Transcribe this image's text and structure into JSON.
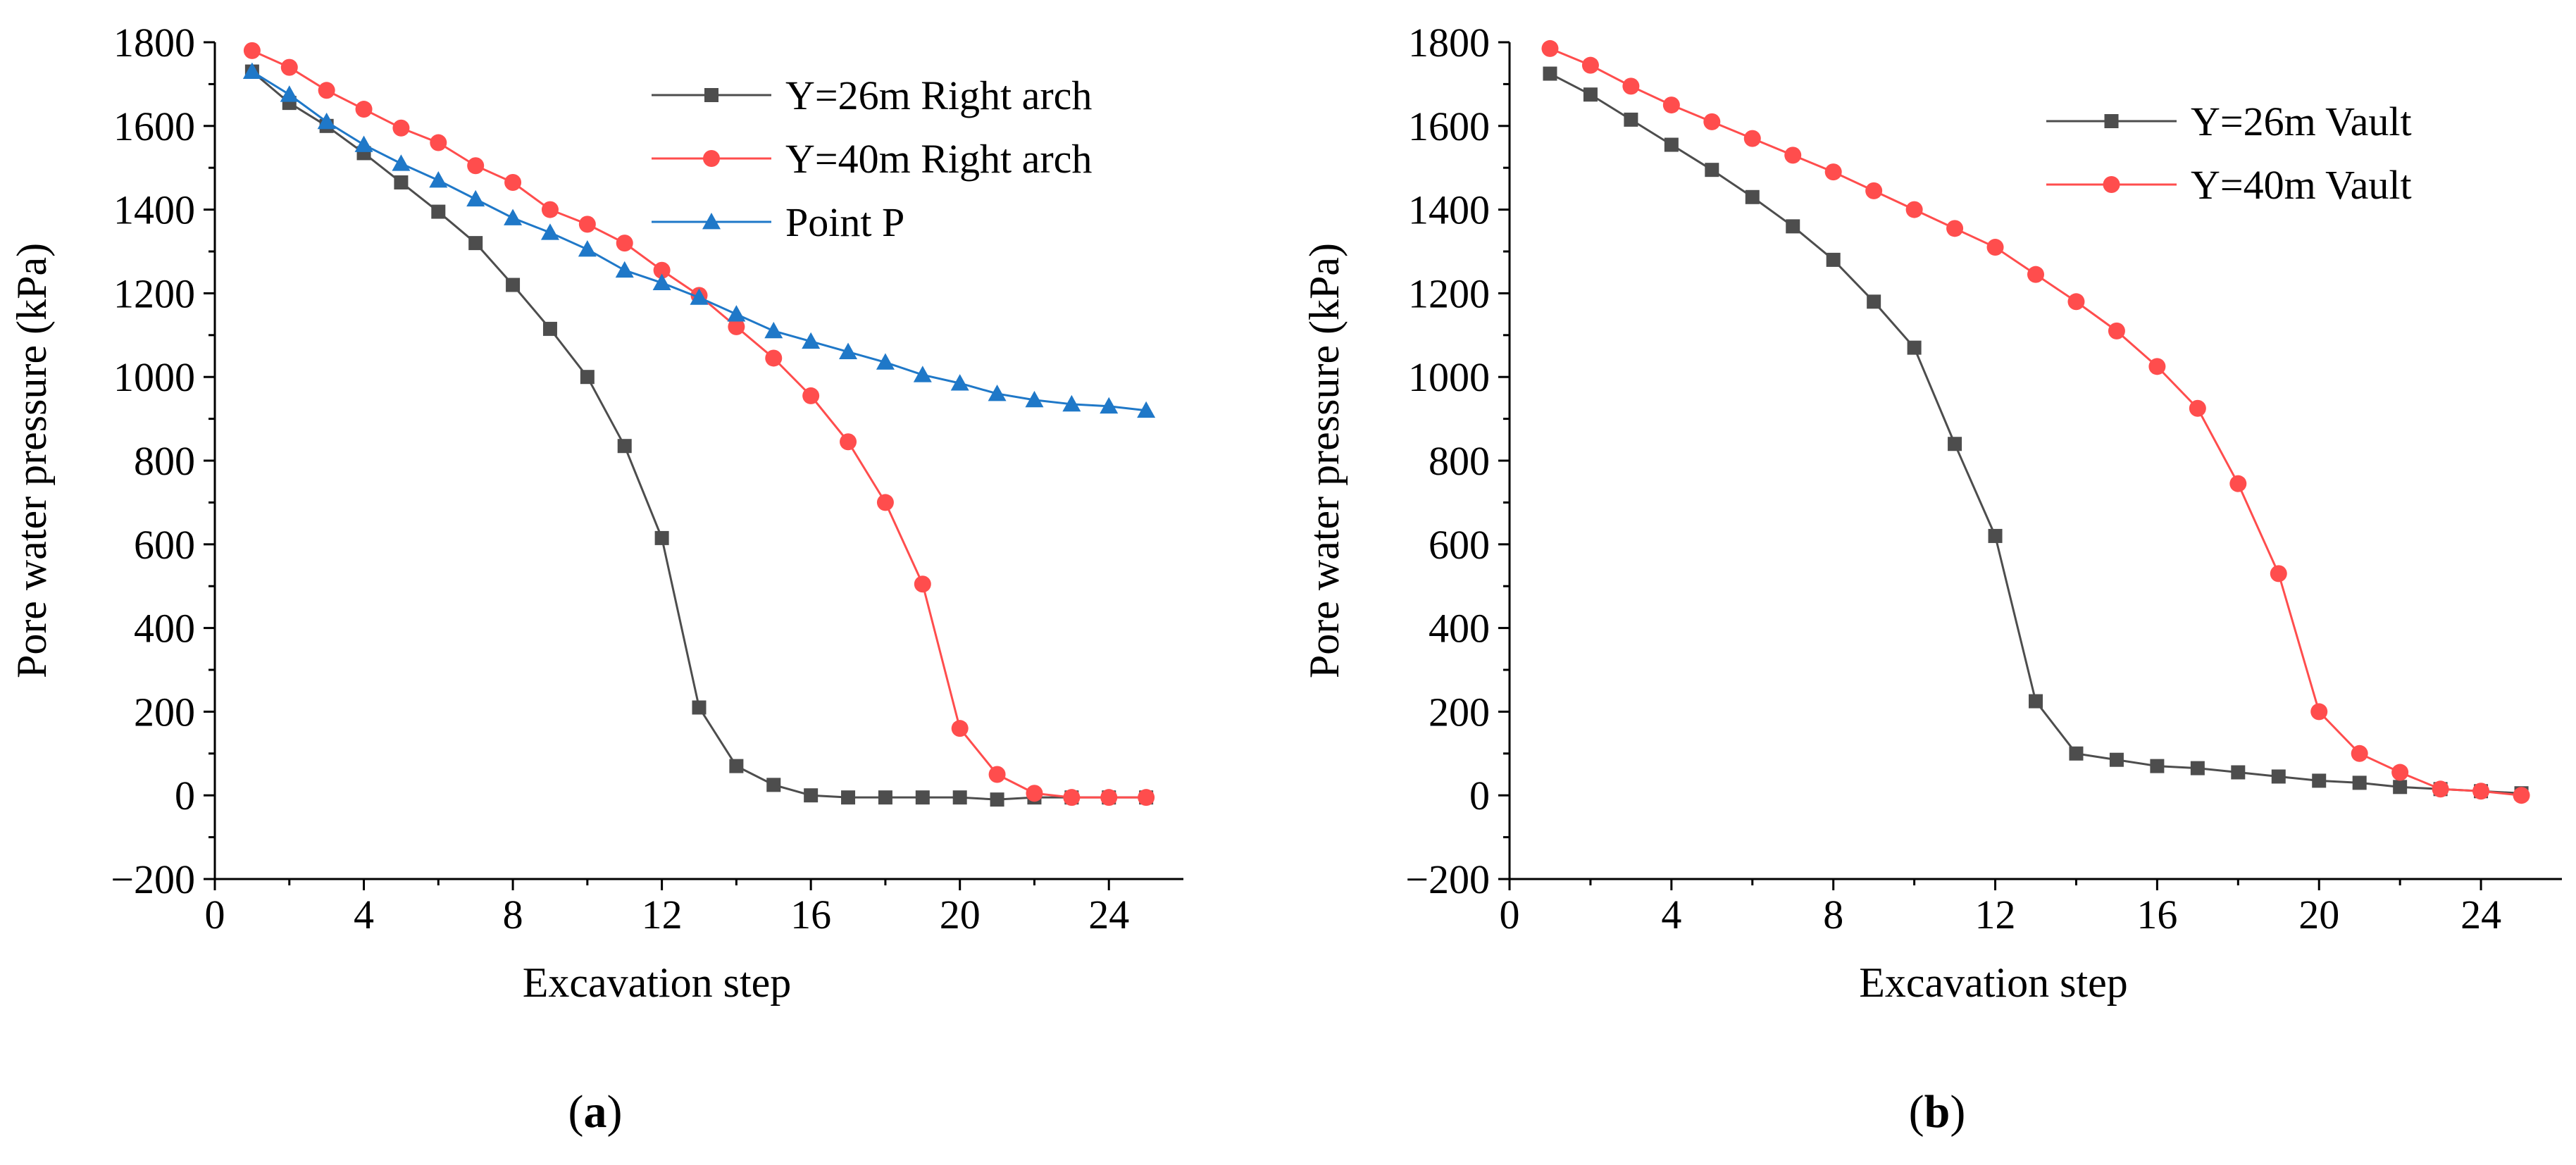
{
  "chart_data": [
    {
      "type": "line",
      "panel_label": "a",
      "xlabel": "Excavation step",
      "ylabel": "Pore water pressure (kPa)",
      "xlim": [
        0,
        26
      ],
      "ylim": [
        -200,
        1800
      ],
      "xticks": [
        0,
        4,
        8,
        12,
        16,
        20,
        24
      ],
      "yticks": [
        -200,
        0,
        200,
        400,
        600,
        800,
        1000,
        1200,
        1400,
        1600,
        1800
      ],
      "legend_position": "top-right",
      "x": [
        1,
        2,
        3,
        4,
        5,
        6,
        7,
        8,
        9,
        10,
        11,
        12,
        13,
        14,
        15,
        16,
        17,
        18,
        19,
        20,
        21,
        22,
        23,
        24,
        25
      ],
      "series": [
        {
          "name": "Y=26m Right arch",
          "color": "#4d4d4d",
          "marker": "square",
          "values": [
            1730,
            1655,
            1600,
            1535,
            1465,
            1395,
            1320,
            1220,
            1115,
            1000,
            835,
            615,
            210,
            70,
            25,
            0,
            -5,
            -5,
            -5,
            -5,
            -10,
            -5,
            -5,
            -5,
            -5
          ]
        },
        {
          "name": "Y=40m Right arch",
          "color": "#ff4d4d",
          "marker": "circle",
          "values": [
            1780,
            1740,
            1685,
            1640,
            1595,
            1560,
            1505,
            1465,
            1400,
            1365,
            1320,
            1255,
            1195,
            1120,
            1045,
            955,
            845,
            700,
            505,
            160,
            50,
            5,
            -5,
            -5,
            -5
          ]
        },
        {
          "name": "Point P",
          "color": "#1f78c8",
          "marker": "triangle",
          "values": [
            1730,
            1675,
            1610,
            1555,
            1510,
            1470,
            1425,
            1380,
            1345,
            1305,
            1255,
            1225,
            1190,
            1150,
            1110,
            1085,
            1060,
            1035,
            1005,
            985,
            960,
            945,
            935,
            930,
            920
          ]
        }
      ]
    },
    {
      "type": "line",
      "panel_label": "b",
      "xlabel": "Excavation step",
      "ylabel": "Pore water pressure (kPa)",
      "xlim": [
        0,
        26
      ],
      "ylim": [
        -200,
        1800
      ],
      "xticks": [
        0,
        4,
        8,
        12,
        16,
        20,
        24
      ],
      "yticks": [
        -200,
        0,
        200,
        400,
        600,
        800,
        1000,
        1200,
        1400,
        1600,
        1800
      ],
      "legend_position": "top-right",
      "x": [
        1,
        2,
        3,
        4,
        5,
        6,
        7,
        8,
        9,
        10,
        11,
        12,
        13,
        14,
        15,
        16,
        17,
        18,
        19,
        20,
        21,
        22,
        23,
        24,
        25
      ],
      "series": [
        {
          "name": "Y=26m Vault",
          "color": "#4d4d4d",
          "marker": "square",
          "values": [
            1725,
            1675,
            1615,
            1555,
            1495,
            1430,
            1360,
            1280,
            1180,
            1070,
            840,
            620,
            225,
            100,
            85,
            70,
            65,
            55,
            45,
            35,
            30,
            20,
            15,
            10,
            5
          ]
        },
        {
          "name": "Y=40m Vault",
          "color": "#ff4d4d",
          "marker": "circle",
          "values": [
            1785,
            1745,
            1695,
            1650,
            1610,
            1570,
            1530,
            1490,
            1445,
            1400,
            1355,
            1310,
            1245,
            1180,
            1110,
            1025,
            925,
            745,
            530,
            200,
            100,
            55,
            15,
            10,
            0
          ]
        }
      ]
    }
  ]
}
